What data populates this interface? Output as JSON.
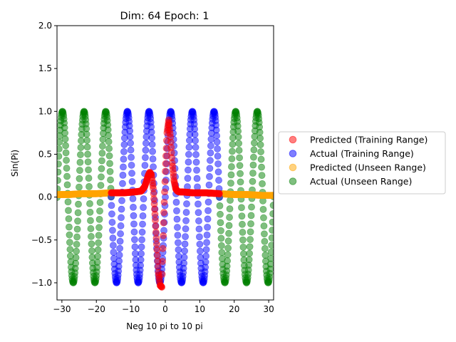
{
  "chart_data": {
    "type": "scatter",
    "title": "Dim: 64 Epoch: 1",
    "xlabel": "Neg 10 pi to 10 pi",
    "ylabel": "Sin(Pi)",
    "xlim": [
      -31.42,
      31.42
    ],
    "ylim": [
      -1.2,
      2.0
    ],
    "xticks": [
      -30,
      -20,
      -10,
      0,
      10,
      20,
      30
    ],
    "xtick_labels": [
      "−30",
      "−20",
      "−10",
      "0",
      "10",
      "20",
      "30"
    ],
    "yticks": [
      -1.0,
      -0.5,
      0.0,
      0.5,
      1.0,
      1.5,
      2.0
    ],
    "ytick_labels": [
      "−1.0",
      "−0.5",
      "0.0",
      "0.5",
      "1.0",
      "1.5",
      "2.0"
    ],
    "grid": false,
    "legend_placement": "outside-right",
    "marker_alpha": 0.5,
    "training_range": [
      -15.71,
      15.71
    ],
    "series": [
      {
        "name": "Predicted (Training Range)",
        "color": "#ff0000",
        "x": [
          -15.7,
          -12.0,
          -9.0,
          -7.0,
          -6.0,
          -5.5,
          -5.0,
          -4.5,
          -4.0,
          -3.5,
          -3.0,
          -2.5,
          -2.0,
          -1.5,
          -1.0,
          -0.5,
          0.0,
          0.5,
          1.0,
          1.5,
          2.0,
          2.5,
          3.0,
          3.5,
          4.0,
          5.0,
          8.0,
          12.0,
          15.7
        ],
        "y": [
          0.05,
          0.05,
          0.06,
          0.07,
          0.12,
          0.18,
          0.25,
          0.29,
          0.26,
          0.1,
          -0.2,
          -0.55,
          -0.88,
          -1.03,
          -1.05,
          -0.3,
          0.3,
          0.75,
          0.9,
          0.7,
          0.4,
          0.2,
          0.1,
          0.07,
          0.06,
          0.06,
          0.05,
          0.05,
          0.04
        ]
      },
      {
        "name": "Actual (Training Range)",
        "color": "#0000ff",
        "function": "sin(x)",
        "x_range": [
          -15.71,
          15.71
        ]
      },
      {
        "name": "Predicted (Unseen Range)",
        "color": "#ffa500",
        "x": [
          -31.4,
          -28.0,
          -24.0,
          -20.0,
          -15.7,
          15.7,
          20.0,
          24.0,
          28.0,
          31.4
        ],
        "y": [
          0.03,
          0.03,
          0.04,
          0.04,
          0.05,
          0.04,
          0.03,
          0.03,
          0.02,
          0.02
        ]
      },
      {
        "name": "Actual (Unseen Range)",
        "color": "#008000",
        "function": "sin(x)",
        "x_range": [
          [
            -31.42,
            -15.71
          ],
          [
            15.71,
            31.42
          ]
        ]
      }
    ]
  }
}
